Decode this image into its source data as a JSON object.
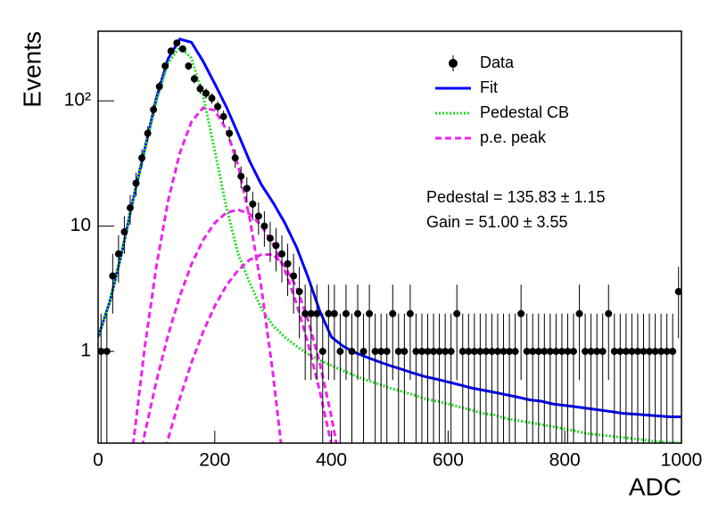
{
  "chart_data": {
    "type": "histogram-fit",
    "xlabel": "ADC",
    "ylabel": "Events",
    "log_y": true,
    "xlim": [
      0,
      1000
    ],
    "ylim": [
      0.185,
      360
    ],
    "xticks": [
      0,
      200,
      400,
      600,
      800,
      1000
    ],
    "yticks": [
      1,
      10,
      {
        "value": 100,
        "label": "10²"
      }
    ],
    "legend": "top-right",
    "annotations": [
      "Pedestal = 135.83 ± 1.15",
      "Gain = 51.00 ± 3.55"
    ],
    "data": {
      "name": "Data",
      "color": "#000000",
      "x": [
        5,
        15,
        25,
        35,
        45,
        55,
        65,
        75,
        85,
        95,
        105,
        115,
        125,
        135,
        145,
        155,
        165,
        175,
        185,
        195,
        205,
        215,
        225,
        235,
        245,
        255,
        265,
        275,
        285,
        295,
        305,
        315,
        325,
        335,
        345,
        355,
        365,
        375,
        385,
        395,
        405,
        415,
        425,
        435,
        445,
        455,
        465,
        475,
        485,
        495,
        505,
        515,
        525,
        535,
        545,
        555,
        565,
        575,
        585,
        595,
        605,
        615,
        625,
        635,
        645,
        655,
        665,
        675,
        685,
        695,
        705,
        715,
        725,
        735,
        745,
        755,
        765,
        775,
        785,
        795,
        805,
        815,
        825,
        835,
        845,
        855,
        865,
        875,
        885,
        895,
        905,
        915,
        925,
        935,
        945,
        955,
        965,
        975,
        985,
        995
      ],
      "values": [
        1,
        1,
        4,
        6,
        9,
        14,
        22,
        35,
        55,
        85,
        130,
        190,
        250,
        290,
        260,
        190,
        150,
        125,
        115,
        105,
        90,
        75,
        55,
        35,
        25,
        20,
        15,
        12,
        10,
        8,
        7,
        6,
        5,
        4,
        3,
        2,
        2,
        2,
        1,
        2,
        2,
        1,
        2,
        1,
        2,
        1,
        2,
        1,
        1,
        1,
        2,
        1,
        1,
        2,
        1,
        1,
        1,
        1,
        1,
        1,
        1,
        2,
        1,
        1,
        1,
        1,
        1,
        1,
        1,
        1,
        1,
        1,
        2,
        1,
        1,
        1,
        1,
        1,
        1,
        1,
        1,
        1,
        2,
        1,
        1,
        1,
        1,
        2,
        1,
        1,
        1,
        1,
        1,
        1,
        1,
        1,
        1,
        1,
        1,
        3
      ],
      "errors": [
        1,
        1,
        2,
        2.45,
        3,
        3.74,
        4.69,
        5.92,
        7.42,
        9.22,
        11.4,
        13.8,
        15.8,
        17,
        16.1,
        13.8,
        12.2,
        11.2,
        10.7,
        10.2,
        9.49,
        8.66,
        7.42,
        5.92,
        5,
        4.47,
        3.87,
        3.46,
        3.16,
        2.83,
        2.65,
        2.45,
        2.24,
        2,
        1.73,
        1.41,
        1.41,
        1.41,
        1,
        1.41,
        1.41,
        1,
        1.41,
        1,
        1.41,
        1,
        1.41,
        1,
        1,
        1,
        1.41,
        1,
        1,
        1.41,
        1,
        1,
        1,
        1,
        1,
        1,
        1,
        1.41,
        1,
        1,
        1,
        1,
        1,
        1,
        1,
        1,
        1,
        1,
        1.41,
        1,
        1,
        1,
        1,
        1,
        1,
        1,
        1,
        1,
        1.41,
        1,
        1,
        1,
        1,
        1.41,
        1,
        1,
        1,
        1,
        1,
        1,
        1,
        1,
        1,
        1,
        1,
        1.73
      ]
    },
    "curve_x": [
      0,
      20,
      40,
      60,
      80,
      100,
      120,
      140,
      160,
      180,
      200,
      220,
      240,
      260,
      280,
      300,
      320,
      340,
      360,
      380,
      400,
      420,
      440,
      460,
      480,
      500,
      520,
      540,
      560,
      580,
      600,
      620,
      640,
      660,
      680,
      700,
      720,
      740,
      760,
      780,
      800,
      820,
      840,
      860,
      880,
      900,
      920,
      940,
      960,
      980,
      1000
    ],
    "series": [
      {
        "name": "Fit",
        "color": "#0000ff",
        "line_style": "solid",
        "curves": [
          [
            1.3,
            2.5,
            6,
            16.3,
            41.3,
            105.5,
            217.5,
            311,
            294,
            207,
            137,
            89.2,
            54.5,
            32.9,
            21.4,
            15.4,
            10.6,
            6.8,
            3.9,
            2.1,
            1.3,
            1.1,
            0.98,
            0.9,
            0.83,
            0.77,
            0.72,
            0.67,
            0.63,
            0.6,
            0.57,
            0.54,
            0.51,
            0.49,
            0.47,
            0.45,
            0.43,
            0.41,
            0.4,
            0.38,
            0.37,
            0.36,
            0.35,
            0.34,
            0.33,
            0.32,
            0.315,
            0.31,
            0.305,
            0.3,
            0.3
          ]
        ]
      },
      {
        "name": "Pedestal CB",
        "color": "#22dd22",
        "line_style": "dotted",
        "curves": [
          [
            1.3,
            2.5,
            6,
            16,
            40,
            100,
            200,
            270,
            220,
            110,
            40,
            14,
            6,
            3.5,
            2.2,
            1.6,
            1.3,
            1.1,
            0.95,
            0.85,
            0.77,
            0.7,
            0.64,
            0.59,
            0.55,
            0.51,
            0.48,
            0.45,
            0.42,
            0.4,
            0.38,
            0.36,
            0.34,
            0.32,
            0.31,
            0.29,
            0.28,
            0.27,
            0.26,
            0.25,
            0.24,
            0.23,
            0.22,
            0.215,
            0.21,
            0.205,
            0.2,
            0.195,
            0.19,
            0.187,
            0.185
          ]
        ]
      },
      {
        "name": "p.e. peak",
        "color": "#ee22ee",
        "line_style": "dashed",
        "curves": [
          [
            null,
            null,
            null,
            0.18,
            1.08,
            4.8,
            16,
            38.3,
            68,
            88,
            84,
            59,
            30.5,
            11.5,
            3.2,
            0.65,
            0.1,
            null,
            null,
            null,
            null,
            null,
            null,
            null,
            null,
            null,
            null,
            null,
            null,
            null,
            null,
            null,
            null,
            null,
            null,
            null,
            null,
            null,
            null,
            null,
            null,
            null,
            null,
            null,
            null,
            null,
            null,
            null,
            null,
            null,
            null
          ],
          [
            null,
            null,
            null,
            0.071,
            0.22,
            0.58,
            1.35,
            2.76,
            4.94,
            7.74,
            10.6,
            12.8,
            13.5,
            12.5,
            10.1,
            7.17,
            4.44,
            2.42,
            1.15,
            0.48,
            0.18,
            0.057,
            null,
            null,
            null,
            null,
            null,
            null,
            null,
            null,
            null,
            null,
            null,
            null,
            null,
            null,
            null,
            null,
            null,
            null,
            null,
            null,
            null,
            null,
            null,
            null,
            null,
            null,
            null,
            null,
            null
          ],
          [
            null,
            null,
            null,
            null,
            null,
            0.084,
            0.2,
            0.42,
            0.81,
            1.43,
            2.3,
            3.36,
            4.46,
            5.39,
            5.93,
            5.93,
            4.8,
            3.25,
            1.78,
            0.81,
            0.3,
            0.093,
            null,
            null,
            null,
            null,
            null,
            null,
            null,
            null,
            null,
            null,
            null,
            null,
            null,
            null,
            null,
            null,
            null,
            null,
            null,
            null,
            null,
            null,
            null,
            null,
            null,
            null,
            null,
            null,
            null
          ]
        ]
      }
    ]
  }
}
